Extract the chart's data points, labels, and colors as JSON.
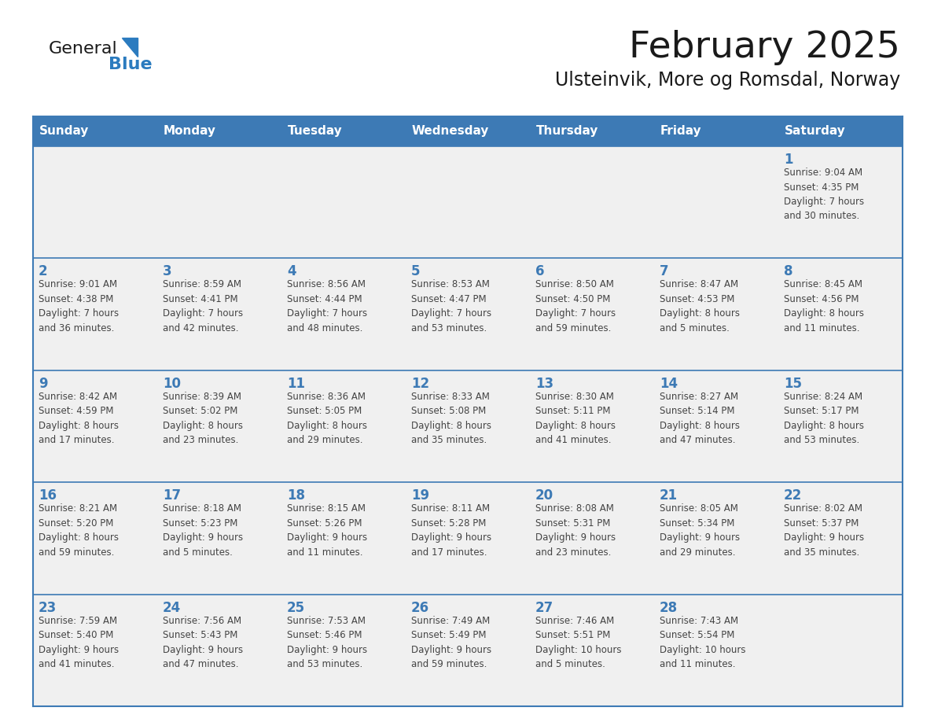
{
  "title": "February 2025",
  "subtitle": "Ulsteinvik, More og Romsdal, Norway",
  "header_color": "#3d7ab5",
  "header_text_color": "#ffffff",
  "cell_bg_color": "#f0f0f0",
  "border_color": "#3d7ab5",
  "day_names": [
    "Sunday",
    "Monday",
    "Tuesday",
    "Wednesday",
    "Thursday",
    "Friday",
    "Saturday"
  ],
  "title_color": "#1a1a1a",
  "subtitle_color": "#1a1a1a",
  "day_num_color": "#3d7ab5",
  "info_color": "#444444",
  "logo_general_color": "#1a1a1a",
  "logo_blue_color": "#2b7bbf",
  "weeks": [
    [
      {
        "day": "",
        "info": ""
      },
      {
        "day": "",
        "info": ""
      },
      {
        "day": "",
        "info": ""
      },
      {
        "day": "",
        "info": ""
      },
      {
        "day": "",
        "info": ""
      },
      {
        "day": "",
        "info": ""
      },
      {
        "day": "1",
        "info": "Sunrise: 9:04 AM\nSunset: 4:35 PM\nDaylight: 7 hours\nand 30 minutes."
      }
    ],
    [
      {
        "day": "2",
        "info": "Sunrise: 9:01 AM\nSunset: 4:38 PM\nDaylight: 7 hours\nand 36 minutes."
      },
      {
        "day": "3",
        "info": "Sunrise: 8:59 AM\nSunset: 4:41 PM\nDaylight: 7 hours\nand 42 minutes."
      },
      {
        "day": "4",
        "info": "Sunrise: 8:56 AM\nSunset: 4:44 PM\nDaylight: 7 hours\nand 48 minutes."
      },
      {
        "day": "5",
        "info": "Sunrise: 8:53 AM\nSunset: 4:47 PM\nDaylight: 7 hours\nand 53 minutes."
      },
      {
        "day": "6",
        "info": "Sunrise: 8:50 AM\nSunset: 4:50 PM\nDaylight: 7 hours\nand 59 minutes."
      },
      {
        "day": "7",
        "info": "Sunrise: 8:47 AM\nSunset: 4:53 PM\nDaylight: 8 hours\nand 5 minutes."
      },
      {
        "day": "8",
        "info": "Sunrise: 8:45 AM\nSunset: 4:56 PM\nDaylight: 8 hours\nand 11 minutes."
      }
    ],
    [
      {
        "day": "9",
        "info": "Sunrise: 8:42 AM\nSunset: 4:59 PM\nDaylight: 8 hours\nand 17 minutes."
      },
      {
        "day": "10",
        "info": "Sunrise: 8:39 AM\nSunset: 5:02 PM\nDaylight: 8 hours\nand 23 minutes."
      },
      {
        "day": "11",
        "info": "Sunrise: 8:36 AM\nSunset: 5:05 PM\nDaylight: 8 hours\nand 29 minutes."
      },
      {
        "day": "12",
        "info": "Sunrise: 8:33 AM\nSunset: 5:08 PM\nDaylight: 8 hours\nand 35 minutes."
      },
      {
        "day": "13",
        "info": "Sunrise: 8:30 AM\nSunset: 5:11 PM\nDaylight: 8 hours\nand 41 minutes."
      },
      {
        "day": "14",
        "info": "Sunrise: 8:27 AM\nSunset: 5:14 PM\nDaylight: 8 hours\nand 47 minutes."
      },
      {
        "day": "15",
        "info": "Sunrise: 8:24 AM\nSunset: 5:17 PM\nDaylight: 8 hours\nand 53 minutes."
      }
    ],
    [
      {
        "day": "16",
        "info": "Sunrise: 8:21 AM\nSunset: 5:20 PM\nDaylight: 8 hours\nand 59 minutes."
      },
      {
        "day": "17",
        "info": "Sunrise: 8:18 AM\nSunset: 5:23 PM\nDaylight: 9 hours\nand 5 minutes."
      },
      {
        "day": "18",
        "info": "Sunrise: 8:15 AM\nSunset: 5:26 PM\nDaylight: 9 hours\nand 11 minutes."
      },
      {
        "day": "19",
        "info": "Sunrise: 8:11 AM\nSunset: 5:28 PM\nDaylight: 9 hours\nand 17 minutes."
      },
      {
        "day": "20",
        "info": "Sunrise: 8:08 AM\nSunset: 5:31 PM\nDaylight: 9 hours\nand 23 minutes."
      },
      {
        "day": "21",
        "info": "Sunrise: 8:05 AM\nSunset: 5:34 PM\nDaylight: 9 hours\nand 29 minutes."
      },
      {
        "day": "22",
        "info": "Sunrise: 8:02 AM\nSunset: 5:37 PM\nDaylight: 9 hours\nand 35 minutes."
      }
    ],
    [
      {
        "day": "23",
        "info": "Sunrise: 7:59 AM\nSunset: 5:40 PM\nDaylight: 9 hours\nand 41 minutes."
      },
      {
        "day": "24",
        "info": "Sunrise: 7:56 AM\nSunset: 5:43 PM\nDaylight: 9 hours\nand 47 minutes."
      },
      {
        "day": "25",
        "info": "Sunrise: 7:53 AM\nSunset: 5:46 PM\nDaylight: 9 hours\nand 53 minutes."
      },
      {
        "day": "26",
        "info": "Sunrise: 7:49 AM\nSunset: 5:49 PM\nDaylight: 9 hours\nand 59 minutes."
      },
      {
        "day": "27",
        "info": "Sunrise: 7:46 AM\nSunset: 5:51 PM\nDaylight: 10 hours\nand 5 minutes."
      },
      {
        "day": "28",
        "info": "Sunrise: 7:43 AM\nSunset: 5:54 PM\nDaylight: 10 hours\nand 11 minutes."
      },
      {
        "day": "",
        "info": ""
      }
    ]
  ]
}
